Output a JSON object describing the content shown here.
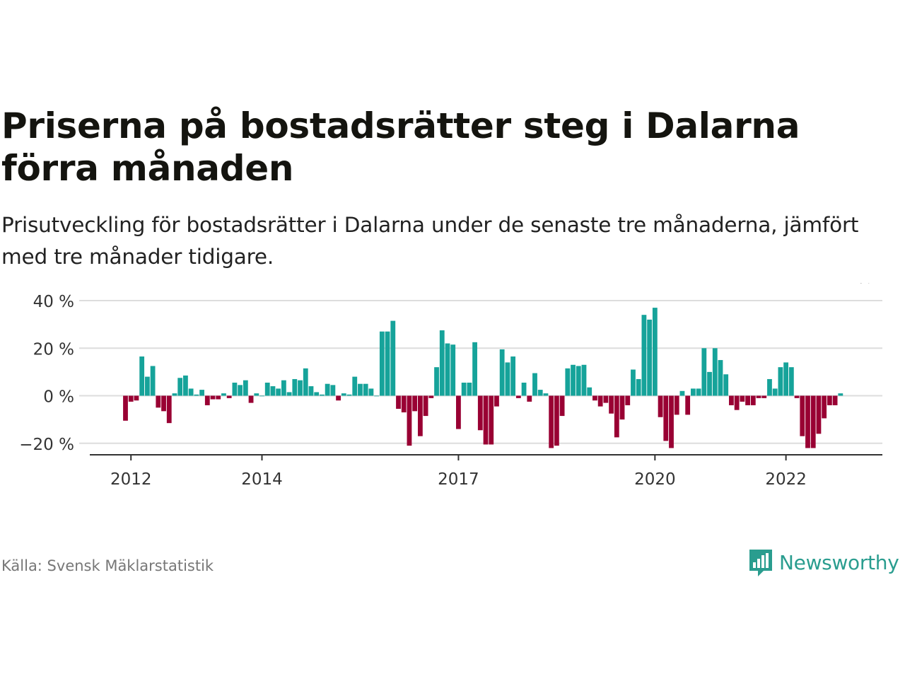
{
  "title": "Priserna på bostadsrätter steg i Dalarna förra månaden",
  "subtitle": "Prisutveckling för bostadsrätter i Dalarna under de senaste tre månaderna, jämfört med tre månader tidigare.",
  "source": "Källa: Svensk Mäklarstatistik",
  "brand": {
    "name": "Newsworthy",
    "logo_icon": "bar-chart-speech-bubble-icon"
  },
  "colors": {
    "positive": "#16a39a",
    "negative": "#990033",
    "grid": "#dddddd",
    "axis": "#333333",
    "brand": "#2a9d8f"
  },
  "chart_data": {
    "type": "bar",
    "ylim": [
      -25,
      40
    ],
    "yticks": [
      {
        "value": 40,
        "label": "40 %"
      },
      {
        "value": 20,
        "label": "20 %"
      },
      {
        "value": 0,
        "label": "0 %"
      },
      {
        "value": -20,
        "label": "−20 %"
      }
    ],
    "xticks": [
      {
        "label": "2012",
        "index": 1
      },
      {
        "label": "2014",
        "index": 25
      },
      {
        "label": "2017",
        "index": 61
      },
      {
        "label": "2020",
        "index": 97
      },
      {
        "label": "2022",
        "index": 121
      }
    ],
    "annotation": {
      "label": "1 %",
      "index": 134
    },
    "values": [
      -10.5,
      -2.5,
      -2,
      16.5,
      8,
      12.5,
      -5,
      -6.5,
      -11.5,
      1,
      7.5,
      8.5,
      3,
      0.5,
      2.5,
      -4,
      -1.5,
      -1.5,
      1,
      -1,
      5.5,
      4.5,
      6.5,
      -3,
      1,
      0,
      5.5,
      4,
      3,
      6.5,
      1.5,
      7,
      6.5,
      11.5,
      4,
      1.5,
      0.5,
      5,
      4.5,
      -2,
      1,
      0.5,
      8,
      5,
      5,
      3,
      0,
      27,
      27,
      31.5,
      -5.5,
      -7,
      -21,
      -6.5,
      -17,
      -8.5,
      -1,
      12,
      27.5,
      22,
      21.5,
      -14,
      5.5,
      5.5,
      22.5,
      -14.5,
      -20.5,
      -20.5,
      -4.5,
      19.5,
      14,
      16.5,
      -1,
      5.5,
      -2.5,
      9.5,
      2.5,
      1,
      -22,
      -21,
      -8.5,
      11.5,
      13,
      12.5,
      13,
      3.5,
      -2,
      -4.5,
      -3,
      -7.5,
      -17.5,
      -10,
      -4,
      11,
      7,
      34,
      32,
      37,
      -9,
      -19,
      -22,
      -8,
      2,
      -8,
      3,
      3,
      20,
      10,
      20,
      15,
      9,
      -4,
      -6,
      -2.5,
      -4,
      -4,
      -1,
      -1,
      7,
      3,
      12,
      14,
      12,
      -1,
      -17,
      -22,
      -22,
      -16,
      -9.5,
      -4,
      -4,
      1
    ]
  }
}
